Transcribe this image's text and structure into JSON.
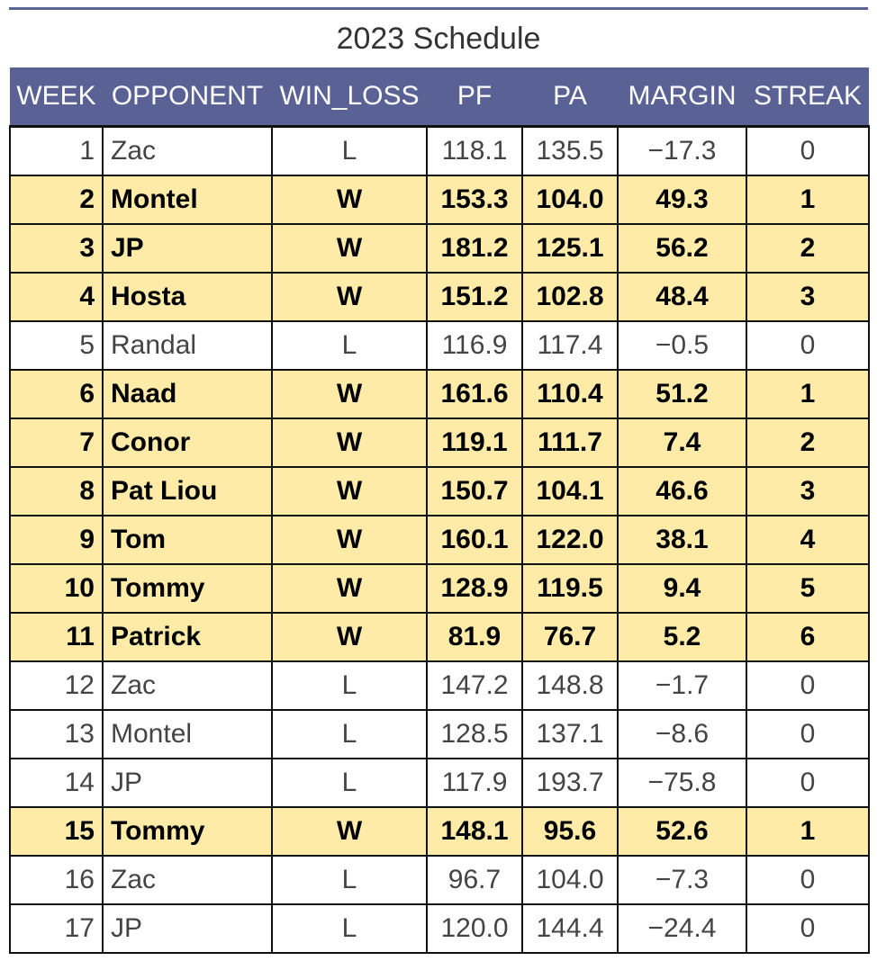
{
  "title": "2023 Schedule",
  "colors": {
    "header_bg": "#5a6195",
    "win_row_bg": "#fdeba7",
    "loss_row_bg": "#ffffff",
    "top_rule": "#5b6294"
  },
  "chart_data": {
    "type": "table",
    "title": "2023 Schedule",
    "columns": [
      "WEEK",
      "OPPONENT",
      "WIN_LOSS",
      "PF",
      "PA",
      "MARGIN",
      "STREAK"
    ],
    "rows": [
      {
        "week": "1",
        "opponent": "Zac",
        "win_loss": "L",
        "pf": "118.1",
        "pa": "135.5",
        "margin": "−17.3",
        "streak": "0"
      },
      {
        "week": "2",
        "opponent": "Montel",
        "win_loss": "W",
        "pf": "153.3",
        "pa": "104.0",
        "margin": "49.3",
        "streak": "1"
      },
      {
        "week": "3",
        "opponent": "JP",
        "win_loss": "W",
        "pf": "181.2",
        "pa": "125.1",
        "margin": "56.2",
        "streak": "2"
      },
      {
        "week": "4",
        "opponent": "Hosta",
        "win_loss": "W",
        "pf": "151.2",
        "pa": "102.8",
        "margin": "48.4",
        "streak": "3"
      },
      {
        "week": "5",
        "opponent": "Randal",
        "win_loss": "L",
        "pf": "116.9",
        "pa": "117.4",
        "margin": "−0.5",
        "streak": "0"
      },
      {
        "week": "6",
        "opponent": "Naad",
        "win_loss": "W",
        "pf": "161.6",
        "pa": "110.4",
        "margin": "51.2",
        "streak": "1"
      },
      {
        "week": "7",
        "opponent": "Conor",
        "win_loss": "W",
        "pf": "119.1",
        "pa": "111.7",
        "margin": "7.4",
        "streak": "2"
      },
      {
        "week": "8",
        "opponent": "Pat Liou",
        "win_loss": "W",
        "pf": "150.7",
        "pa": "104.1",
        "margin": "46.6",
        "streak": "3"
      },
      {
        "week": "9",
        "opponent": "Tom",
        "win_loss": "W",
        "pf": "160.1",
        "pa": "122.0",
        "margin": "38.1",
        "streak": "4"
      },
      {
        "week": "10",
        "opponent": "Tommy",
        "win_loss": "W",
        "pf": "128.9",
        "pa": "119.5",
        "margin": "9.4",
        "streak": "5"
      },
      {
        "week": "11",
        "opponent": "Patrick",
        "win_loss": "W",
        "pf": "81.9",
        "pa": "76.7",
        "margin": "5.2",
        "streak": "6"
      },
      {
        "week": "12",
        "opponent": "Zac",
        "win_loss": "L",
        "pf": "147.2",
        "pa": "148.8",
        "margin": "−1.7",
        "streak": "0"
      },
      {
        "week": "13",
        "opponent": "Montel",
        "win_loss": "L",
        "pf": "128.5",
        "pa": "137.1",
        "margin": "−8.6",
        "streak": "0"
      },
      {
        "week": "14",
        "opponent": "JP",
        "win_loss": "L",
        "pf": "117.9",
        "pa": "193.7",
        "margin": "−75.8",
        "streak": "0"
      },
      {
        "week": "15",
        "opponent": "Tommy",
        "win_loss": "W",
        "pf": "148.1",
        "pa": "95.6",
        "margin": "52.6",
        "streak": "1"
      },
      {
        "week": "16",
        "opponent": "Zac",
        "win_loss": "L",
        "pf": "96.7",
        "pa": "104.0",
        "margin": "−7.3",
        "streak": "0"
      },
      {
        "week": "17",
        "opponent": "JP",
        "win_loss": "L",
        "pf": "120.0",
        "pa": "144.4",
        "margin": "−24.4",
        "streak": "0"
      }
    ]
  }
}
